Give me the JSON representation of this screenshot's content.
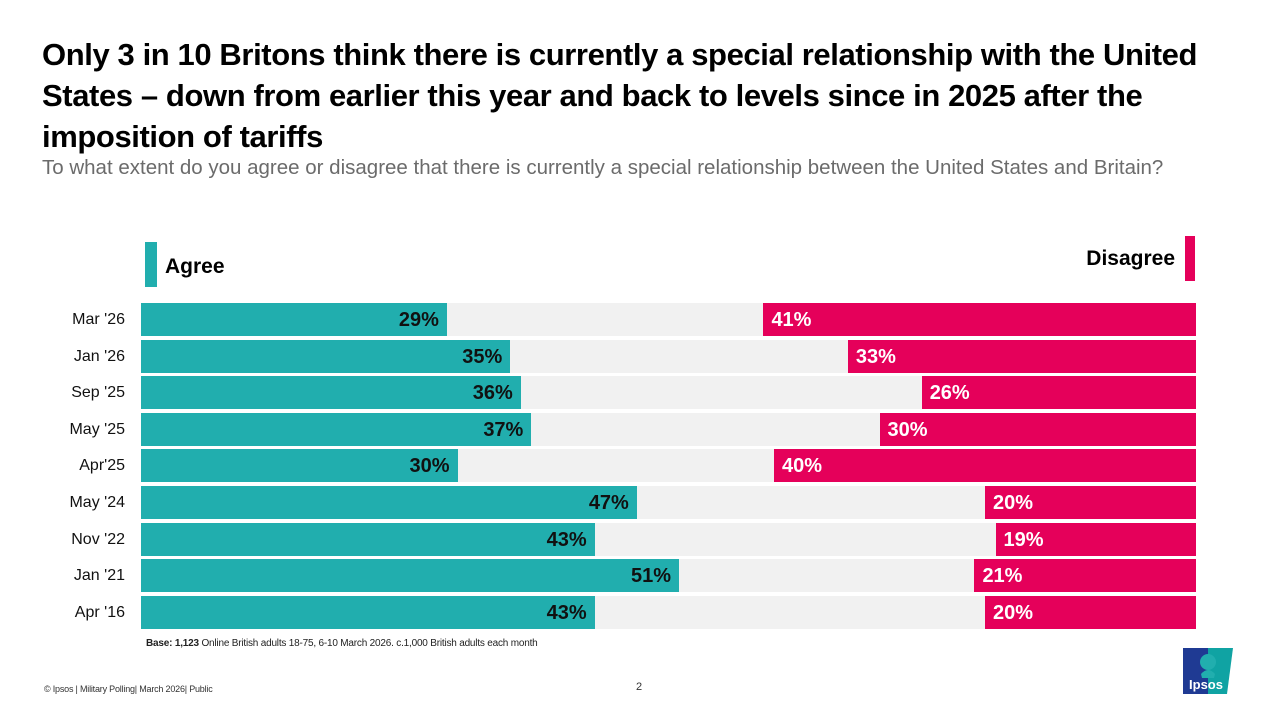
{
  "title": "Only 3 in 10 Britons think there is currently a special relationship with the United States – down from earlier this year and back to levels since in 2025 after the imposition of tariffs",
  "subtitle": "To what extent do you agree or disagree that there is currently a special relationship between the United States and Britain?",
  "colors": {
    "agree": "#21aeae",
    "disagree": "#e5005a",
    "track": "#f1f1f1"
  },
  "chart_data": {
    "type": "bar",
    "orientation": "horizontal-diverging",
    "title": "To what extent do you agree or disagree that there is currently a special relationship between the United States and Britain?",
    "xlabel": "",
    "ylabel": "",
    "xlim": [
      0,
      100
    ],
    "grid": false,
    "legend_position": "top",
    "categories": [
      "Mar '26",
      "Jan '26",
      "Sep '25",
      "May '25",
      "Apr'25",
      "May '24",
      "Nov '22",
      "Jan '21",
      "Apr '16"
    ],
    "series": [
      {
        "name": "Agree",
        "values": [
          29,
          35,
          36,
          37,
          30,
          47,
          43,
          51,
          43
        ],
        "labels": [
          "29%",
          "35%",
          "36%",
          "37%",
          "30%",
          "47%",
          "43%",
          "51%",
          "43%"
        ]
      },
      {
        "name": "Disagree",
        "values": [
          41,
          33,
          26,
          30,
          40,
          20,
          19,
          21,
          20
        ],
        "labels": [
          "41%",
          "33%",
          "26%",
          "30%",
          "40%",
          "20%",
          "19%",
          "21%",
          "20%"
        ]
      }
    ]
  },
  "legend": {
    "agree": "Agree",
    "disagree": "Disagree"
  },
  "base": {
    "label": "Base:",
    "count": "1,123",
    "text": "Online British adults 18-75, 6-10 March 2026. c.1,000 British adults each month"
  },
  "footer": {
    "left": "© Ipsos | Military Polling| March 2026| Public",
    "page": "2"
  },
  "logo": {
    "text": "Ipsos"
  }
}
